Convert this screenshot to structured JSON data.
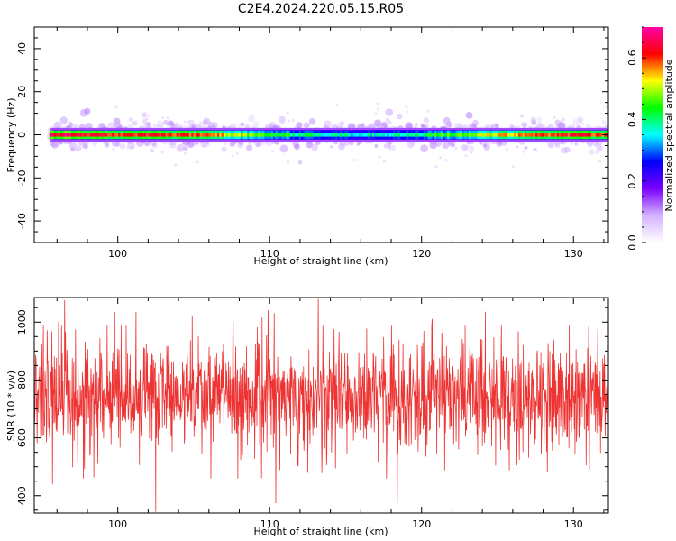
{
  "figure": {
    "title": "C2E4.2024.220.05.15.R05"
  },
  "chart_data": [
    {
      "type": "heatmap",
      "name": "spectrogram",
      "xlabel": "Height of straight line (km)",
      "ylabel": "Frequency (Hz)",
      "xlim": [
        94.5,
        132.3
      ],
      "ylim": [
        -50,
        50
      ],
      "x_ticks": [
        100,
        110,
        120,
        130
      ],
      "y_ticks": [
        -40,
        -20,
        0,
        20,
        40
      ],
      "colorbar": {
        "label": "Normalized spectral amplitude",
        "range": [
          0.0,
          0.7
        ],
        "ticks": [
          0.0,
          0.2,
          0.4,
          0.6
        ],
        "colormap": [
          "#ffffff",
          "#d4b3ff",
          "#7b00ff",
          "#0000ff",
          "#00ffff",
          "#00ff00",
          "#ffff00",
          "#ff0000",
          "#ff00aa"
        ]
      },
      "band": {
        "center_hz": 0,
        "core_halfwidth_hz": 2,
        "halo_halfwidth_hz": 5
      },
      "amplitude_profile": [
        {
          "x": 95.5,
          "a": 0.65
        },
        {
          "x": 100,
          "a": 0.62
        },
        {
          "x": 105,
          "a": 0.6
        },
        {
          "x": 108,
          "a": 0.5
        },
        {
          "x": 112,
          "a": 0.4
        },
        {
          "x": 116,
          "a": 0.36
        },
        {
          "x": 119,
          "a": 0.38
        },
        {
          "x": 122,
          "a": 0.45
        },
        {
          "x": 126,
          "a": 0.55
        },
        {
          "x": 130,
          "a": 0.62
        },
        {
          "x": 132.3,
          "a": 0.6
        }
      ]
    },
    {
      "type": "line",
      "name": "snr",
      "xlabel": "Height of straight line (km)",
      "ylabel": "SNR (10 * v/v)",
      "xlim": [
        94.5,
        132.3
      ],
      "ylim": [
        340,
        1085
      ],
      "x_ticks": [
        100,
        110,
        120,
        130
      ],
      "y_ticks": [
        400,
        600,
        800,
        1000
      ],
      "color": "#ee3333",
      "series": [
        {
          "mean": 740,
          "typical_min": 500,
          "typical_max": 960,
          "notable_points": [
            {
              "x": 95.1,
              "y": 990
            },
            {
              "x": 95.7,
              "y": 440
            },
            {
              "x": 96.1,
              "y": 1000
            },
            {
              "x": 96.5,
              "y": 1075
            },
            {
              "x": 99.8,
              "y": 1035
            },
            {
              "x": 101.2,
              "y": 1035
            },
            {
              "x": 102.5,
              "y": 345
            },
            {
              "x": 104.9,
              "y": 1020
            },
            {
              "x": 107.6,
              "y": 1000
            },
            {
              "x": 109.5,
              "y": 1015
            },
            {
              "x": 109.9,
              "y": 1040
            },
            {
              "x": 110.3,
              "y": 1030
            },
            {
              "x": 110.4,
              "y": 375
            },
            {
              "x": 113.2,
              "y": 1080
            },
            {
              "x": 118.4,
              "y": 375
            },
            {
              "x": 120.7,
              "y": 1010
            },
            {
              "x": 124.2,
              "y": 1035
            },
            {
              "x": 131.6,
              "y": 975
            }
          ]
        }
      ]
    }
  ]
}
